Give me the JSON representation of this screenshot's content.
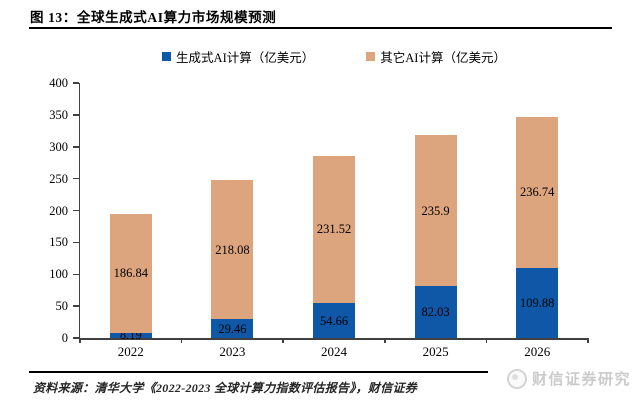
{
  "header": {
    "title": "图 13：全球生成式AI算力市场规模预测"
  },
  "chart_data": {
    "type": "bar",
    "stacked": true,
    "title": "全球生成式AI算力市场规模预测",
    "categories": [
      "2022",
      "2023",
      "2024",
      "2025",
      "2026"
    ],
    "series": [
      {
        "name": "生成式AI计算（亿美元）",
        "color": "#0f57a7",
        "values": [
          8.19,
          29.46,
          54.66,
          82.03,
          109.88
        ]
      },
      {
        "name": "其它AI计算（亿美元）",
        "color": "#dda57e",
        "values": [
          186.84,
          218.08,
          231.52,
          235.9,
          236.74
        ]
      }
    ],
    "ylim": [
      0,
      400
    ],
    "ytick_step": 50,
    "yticks": [
      0,
      50,
      100,
      150,
      200,
      250,
      300,
      350,
      400
    ],
    "grid": false,
    "legend_position": "top",
    "value_labels": true,
    "value_label_color": "#000000",
    "axis_color": "#404040"
  },
  "footer": {
    "source": "资料来源：清华大学《2022-2023 全球计算力指数评估报告》，财信证券",
    "watermark": "财信证券研究"
  }
}
